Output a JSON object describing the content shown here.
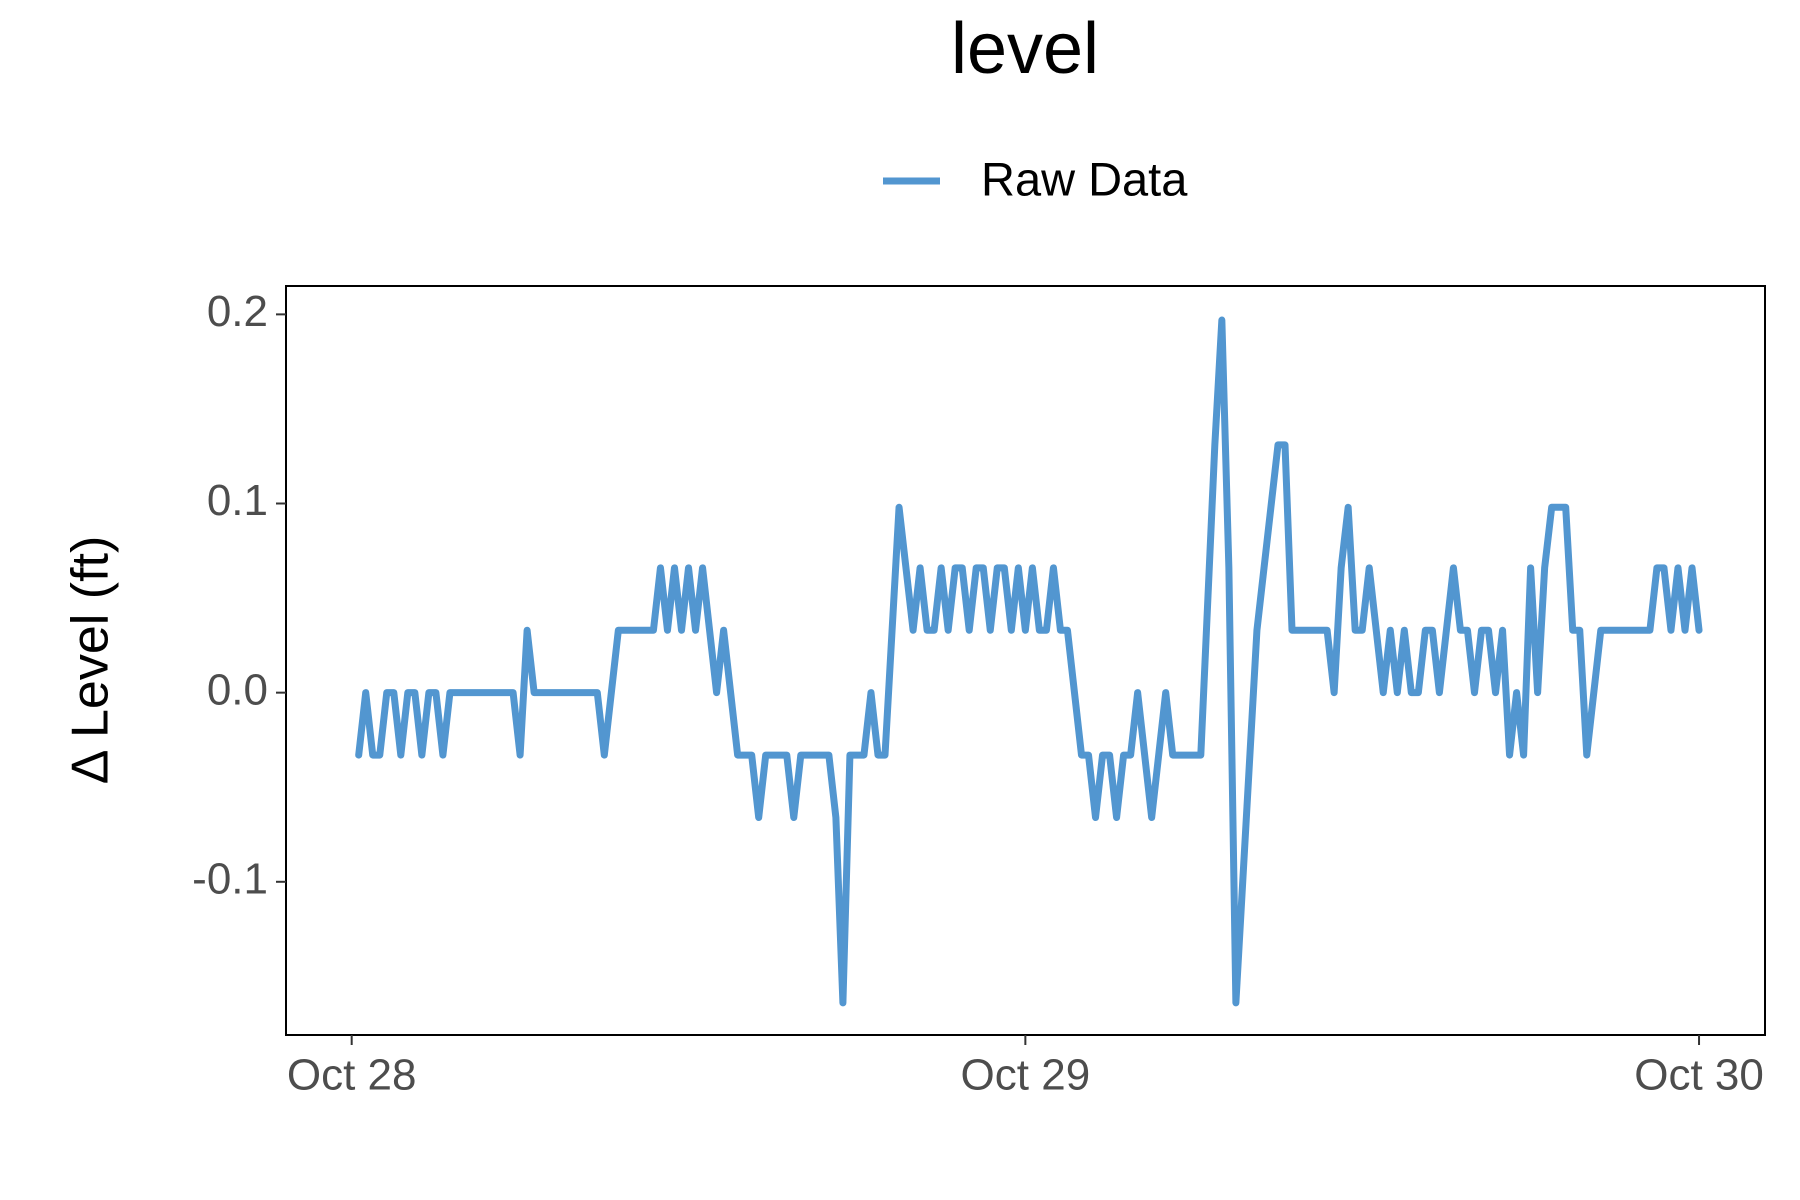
{
  "chart_data": {
    "type": "line",
    "title": "level",
    "ylabel": "Δ Level (ft)",
    "legend": "top",
    "grid": false,
    "x": [
      0.25,
      0.5,
      0.75,
      1,
      1.25,
      1.5,
      1.75,
      2,
      2.25,
      2.5,
      2.75,
      3,
      3.25,
      3.5,
      5.75,
      6,
      6.25,
      6.5,
      8.75,
      9,
      9.5,
      10.75,
      11,
      11.25,
      11.5,
      11.75,
      12,
      12.25,
      12.5,
      12.75,
      13,
      13.25,
      13.75,
      14.25,
      14.5,
      14.75,
      15.5,
      15.75,
      16,
      17,
      17.25,
      17.5,
      17.75,
      18.25,
      18.5,
      18.75,
      19,
      19.5,
      20,
      20.25,
      20.5,
      20.75,
      21,
      21.25,
      21.5,
      21.75,
      22,
      22.25,
      22.5,
      22.75,
      23,
      23.25,
      23.5,
      23.75,
      24,
      24.25,
      24.5,
      24.75,
      25,
      25.25,
      25.5,
      26,
      26.25,
      26.5,
      26.75,
      27,
      27.25,
      27.5,
      27.75,
      28,
      28.25,
      28.5,
      29,
      29.25,
      30.25,
      30.75,
      31,
      31.25,
      31.5,
      32.25,
      33,
      33.25,
      33.5,
      34.75,
      35,
      35.25,
      35.5,
      35.75,
      36,
      36.25,
      36.5,
      36.75,
      37,
      37.25,
      37.5,
      37.75,
      38,
      38.25,
      38.5,
      38.75,
      39,
      39.25,
      39.5,
      39.75,
      40,
      40.25,
      40.5,
      40.75,
      41,
      41.25,
      41.5,
      41.75,
      42,
      42.25,
      42.5,
      42.75,
      43.25,
      43.5,
      43.75,
      44,
      44.5,
      46.25,
      46.5,
      46.75,
      47,
      47.25,
      47.5,
      47.75,
      48
    ],
    "series": [
      {
        "name": "Raw Data",
        "color": "#5296d0",
        "values": [
          -0.033,
          0,
          -0.033,
          -0.033,
          0,
          0,
          -0.033,
          0,
          0,
          -0.033,
          0,
          0,
          -0.033,
          0,
          0,
          -0.033,
          0.033,
          0,
          0,
          -0.033,
          0.033,
          0.033,
          0.066,
          0.033,
          0.066,
          0.033,
          0.066,
          0.033,
          0.066,
          0.033,
          0,
          0.033,
          -0.033,
          -0.033,
          -0.066,
          -0.033,
          -0.033,
          -0.066,
          -0.033,
          -0.033,
          -0.066,
          -0.164,
          -0.033,
          -0.033,
          0,
          -0.033,
          -0.033,
          0.098,
          0.033,
          0.066,
          0.033,
          0.033,
          0.066,
          0.033,
          0.066,
          0.066,
          0.033,
          0.066,
          0.066,
          0.033,
          0.066,
          0.066,
          0.033,
          0.066,
          0.033,
          0.066,
          0.033,
          0.033,
          0.066,
          0.033,
          0.033,
          -0.033,
          -0.033,
          -0.066,
          -0.033,
          -0.033,
          -0.066,
          -0.033,
          -0.033,
          0,
          -0.033,
          -0.066,
          0,
          -0.033,
          -0.033,
          0.131,
          0.197,
          0.066,
          -0.164,
          0.033,
          0.131,
          0.131,
          0.033,
          0.033,
          0,
          0.066,
          0.098,
          0.033,
          0.033,
          0.066,
          0.033,
          0,
          0.033,
          0,
          0.033,
          0,
          0,
          0.033,
          0.033,
          0,
          0.033,
          0.066,
          0.033,
          0.033,
          0,
          0.033,
          0.033,
          0,
          0.033,
          -0.033,
          0,
          -0.033,
          0.066,
          0,
          0.066,
          0.098,
          0.098,
          0.033,
          0.033,
          -0.033,
          0.033,
          0.033,
          0.066,
          0.066,
          0.033,
          0.066,
          0.033,
          0.066,
          0.033
        ]
      }
    ],
    "xlim": [
      -2.34,
      50.35
    ],
    "xticks": [
      {
        "value": 0,
        "label": "Oct 28"
      },
      {
        "value": 24,
        "label": "Oct 29"
      },
      {
        "value": 48,
        "label": "Oct 30"
      }
    ],
    "ylim": [
      -0.181,
      0.215
    ],
    "yticks": [
      -0.1,
      {
        "value": 0,
        "label": "0.0"
      },
      0.1,
      0.2
    ]
  }
}
